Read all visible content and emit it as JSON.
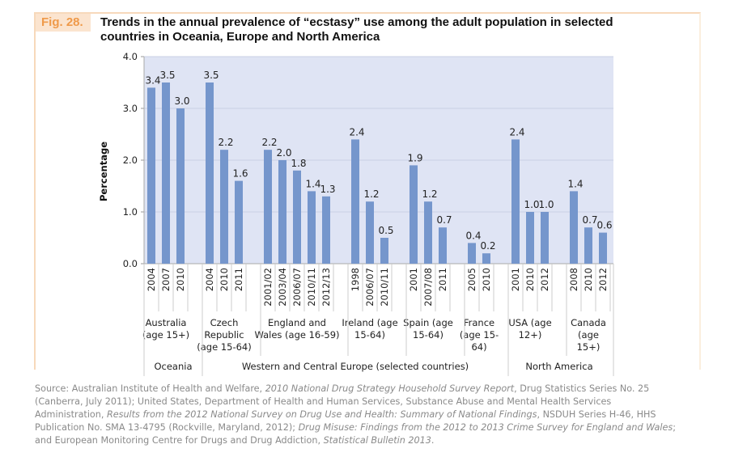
{
  "figure": {
    "label": "Fig. 28.",
    "title": "Trends in the annual prevalence of “ecstasy” use among the adult population in selected countries in Oceania, Europe and North America"
  },
  "chart_data": {
    "type": "bar",
    "title": "Trends in the annual prevalence of “ecstasy” use among the adult population in selected countries in Oceania, Europe and North America",
    "ylabel": "Percentage",
    "ylim": [
      0,
      4.0
    ],
    "yticks": [
      "0.0",
      "1.0",
      "2.0",
      "3.0",
      "4.0"
    ],
    "grid": true,
    "bar_color": "#7596cc",
    "plot_background": "#dfe4f4",
    "groups": [
      {
        "country": [
          "Australia",
          "(age 15+)"
        ],
        "region": "Oceania",
        "years": [
          "2004",
          "2007",
          "2010"
        ],
        "values": [
          3.4,
          3.5,
          3.0
        ]
      },
      {
        "country": [
          "Czech",
          "Republic",
          "(age 15-64)"
        ],
        "region": "Western and Central Europe (selected countries)",
        "years": [
          "2004",
          "2010",
          "2011"
        ],
        "values": [
          3.5,
          2.2,
          1.6
        ]
      },
      {
        "country": [
          "England and",
          "Wales (age 16-59)"
        ],
        "region": "Western and Central Europe (selected countries)",
        "years": [
          "2001/02",
          "2003/04",
          "2006/07",
          "2010/11",
          "2012/13"
        ],
        "values": [
          2.2,
          2.0,
          1.8,
          1.4,
          1.3
        ]
      },
      {
        "country": [
          "Ireland (age",
          "15-64)"
        ],
        "region": "Western and Central Europe (selected countries)",
        "years": [
          "1998",
          "2006/07",
          "2010/11"
        ],
        "values": [
          2.4,
          1.2,
          0.5
        ]
      },
      {
        "country": [
          "Spain (age",
          "15-64)"
        ],
        "region": "Western and Central Europe (selected countries)",
        "years": [
          "2001",
          "2007/08",
          "2011"
        ],
        "values": [
          1.9,
          1.2,
          0.7
        ]
      },
      {
        "country": [
          "France",
          "(age 15-",
          "64)"
        ],
        "region": "Western and Central Europe (selected countries)",
        "years": [
          "2005",
          "2010"
        ],
        "values": [
          0.4,
          0.2
        ]
      },
      {
        "country": [
          "USA (age",
          "12+)"
        ],
        "region": "North America",
        "years": [
          "2001",
          "2010",
          "2012"
        ],
        "values": [
          2.4,
          1.0,
          1.0
        ]
      },
      {
        "country": [
          "Canada",
          "(age",
          "15+)"
        ],
        "region": "North America",
        "years": [
          "2008",
          "2010",
          "2012"
        ],
        "values": [
          1.4,
          0.7,
          0.6
        ]
      }
    ],
    "regions": [
      "Oceania",
      "Western and Central Europe (selected countries)",
      "North America"
    ]
  },
  "source": {
    "parts": [
      {
        "text": "Source: Australian Institute of Health and Welfare, ",
        "italic": false
      },
      {
        "text": "2010 National Drug Strategy Household Survey Report",
        "italic": true
      },
      {
        "text": ", Drug Statistics Series No. 25 (Canberra, July 2011); United States, Department of Health and Human Services, Substance Abuse and Mental Health Services Administration, ",
        "italic": false
      },
      {
        "text": "Results from the 2012 National Survey on Drug Use and Health: Summary of National Findings",
        "italic": true
      },
      {
        "text": ", NSDUH Series H-46, HHS Publication No. SMA 13-4795 (Rockville, Maryland, 2012); ",
        "italic": false
      },
      {
        "text": "Drug Misuse: Findings from the 2012 to 2013 Crime Survey for England and Wales",
        "italic": true
      },
      {
        "text": "; and European Monitoring Centre for Drugs and Drug Addiction, ",
        "italic": false
      },
      {
        "text": "Statistical Bulletin 2013",
        "italic": true
      },
      {
        "text": ".",
        "italic": false
      }
    ]
  }
}
